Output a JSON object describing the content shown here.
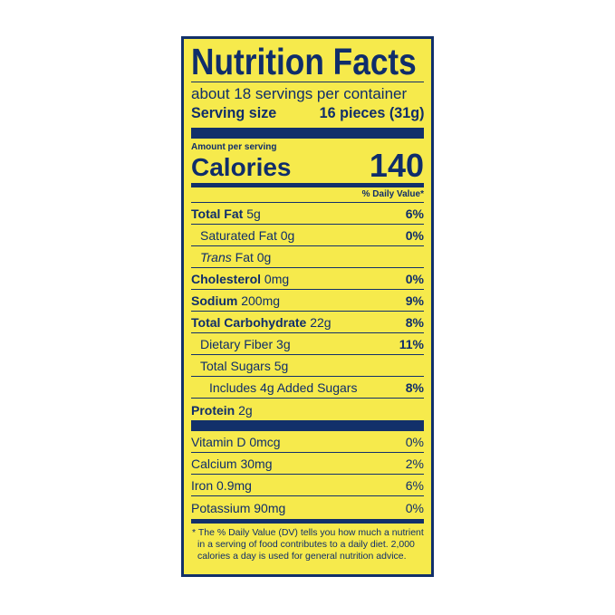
{
  "title": "Nutrition Facts",
  "servings_per_container": "about 18 servings per container",
  "serving_size": {
    "label": "Serving size",
    "value": "16 pieces (31g)"
  },
  "amount_per_serving": "Amount per serving",
  "calories": {
    "label": "Calories",
    "value": "140"
  },
  "daily_value_header": "% Daily Value*",
  "nutrients": [
    {
      "name": "Total Fat",
      "amount": "5g",
      "dv": "6%"
    },
    {
      "name": "Saturated Fat",
      "amount": "0g",
      "dv": "0%"
    },
    {
      "name": "Trans",
      "name_suffix": "Fat",
      "amount": "0g",
      "dv": ""
    },
    {
      "name": "Cholesterol",
      "amount": "0mg",
      "dv": "0%"
    },
    {
      "name": "Sodium",
      "amount": "200mg",
      "dv": "9%"
    },
    {
      "name": "Total Carbohydrate",
      "amount": "22g",
      "dv": "8%"
    },
    {
      "name": "Dietary Fiber",
      "amount": "3g",
      "dv": "11%"
    },
    {
      "name": "Total Sugars",
      "amount": "5g",
      "dv": ""
    },
    {
      "name": "Includes 4g Added Sugars",
      "amount": "",
      "dv": "8%"
    },
    {
      "name": "Protein",
      "amount": "2g",
      "dv": ""
    }
  ],
  "vitamins": [
    {
      "text": "Vitamin D 0mcg",
      "dv": "0%"
    },
    {
      "text": "Calcium 30mg",
      "dv": "2%"
    },
    {
      "text": "Iron 0.9mg",
      "dv": "6%"
    },
    {
      "text": "Potassium 90mg",
      "dv": "0%"
    }
  ],
  "footnote": "* The % Daily Value (DV) tells you how much a nutrient in a serving of food contributes to a daily diet. 2,000 calories a day is used for general nutrition advice.",
  "colors": {
    "background": "#f6ea4c",
    "ink": "#12306a"
  }
}
